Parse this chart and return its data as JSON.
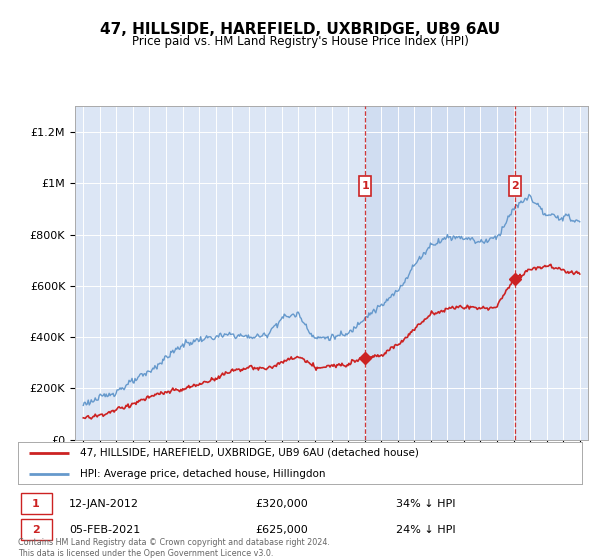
{
  "title": "47, HILLSIDE, HAREFIELD, UXBRIDGE, UB9 6AU",
  "subtitle": "Price paid vs. HM Land Registry's House Price Index (HPI)",
  "bg_color": "#dce6f5",
  "shade_color": "#c8d8ef",
  "hpi_color": "#6699cc",
  "price_color": "#cc2222",
  "dashed_color": "#cc2222",
  "marker1_year": 2012.04,
  "marker2_year": 2021.09,
  "m1_price_y": 320000,
  "m2_price_y": 625000,
  "legend1": "47, HILLSIDE, HAREFIELD, UXBRIDGE, UB9 6AU (detached house)",
  "legend2": "HPI: Average price, detached house, Hillingdon",
  "footer": "Contains HM Land Registry data © Crown copyright and database right 2024.\nThis data is licensed under the Open Government Licence v3.0.",
  "ylim": [
    0,
    1300000
  ],
  "yticks": [
    0,
    200000,
    400000,
    600000,
    800000,
    1000000,
    1200000
  ],
  "ytick_labels": [
    "£0",
    "£200K",
    "£400K",
    "£600K",
    "£800K",
    "£1M",
    "£1.2M"
  ],
  "xlim_left": 1994.5,
  "xlim_right": 2025.5
}
